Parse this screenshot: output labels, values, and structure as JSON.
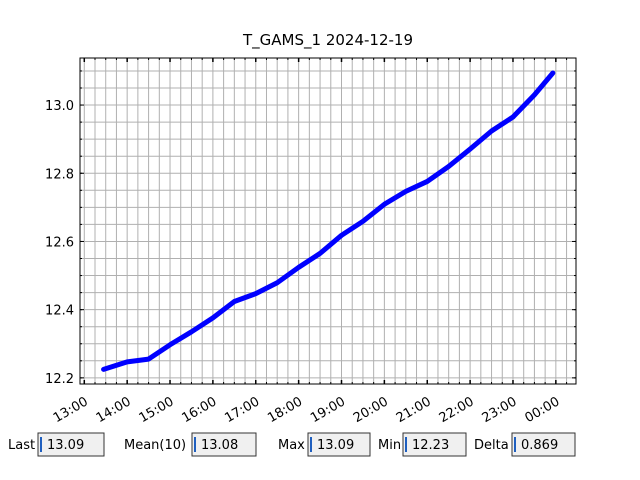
{
  "chart_data": {
    "type": "line",
    "title": "T_GAMS_1 2024-12-19",
    "x": [
      13.45,
      14.0,
      14.5,
      15.0,
      15.5,
      16.0,
      16.5,
      17.0,
      17.5,
      18.0,
      18.5,
      19.0,
      19.5,
      20.0,
      20.5,
      21.0,
      21.5,
      22.0,
      22.5,
      23.0,
      23.5,
      23.93
    ],
    "series": [
      {
        "name": "T_GAMS_1",
        "color": "#0000ff",
        "values": [
          12.225,
          12.247,
          12.255,
          12.297,
          12.335,
          12.376,
          12.424,
          12.447,
          12.479,
          12.524,
          12.565,
          12.618,
          12.659,
          12.709,
          12.747,
          12.776,
          12.82,
          12.871,
          12.924,
          12.965,
          13.03,
          13.094
        ]
      }
    ],
    "xlim": [
      12.9,
      24.47
    ],
    "ylim": [
      12.182,
      13.138
    ],
    "xticks": [
      {
        "value": 13,
        "label": "13:00"
      },
      {
        "value": 14,
        "label": "14:00"
      },
      {
        "value": 15,
        "label": "15:00"
      },
      {
        "value": 16,
        "label": "16:00"
      },
      {
        "value": 17,
        "label": "17:00"
      },
      {
        "value": 18,
        "label": "18:00"
      },
      {
        "value": 19,
        "label": "19:00"
      },
      {
        "value": 20,
        "label": "20:00"
      },
      {
        "value": 21,
        "label": "21:00"
      },
      {
        "value": 22,
        "label": "22:00"
      },
      {
        "value": 23,
        "label": "23:00"
      },
      {
        "value": 24,
        "label": "00:00"
      }
    ],
    "yticks": [
      12.2,
      12.4,
      12.6,
      12.8,
      {
        "value": 13,
        "label": "13.0"
      }
    ],
    "xminorticks": [
      13.0,
      13.25,
      13.5,
      13.75,
      14.0,
      14.25,
      14.5,
      14.75,
      15.0,
      15.25,
      15.5,
      15.75,
      16.0,
      16.25,
      16.5,
      16.75,
      17.0,
      17.25,
      17.5,
      17.75,
      18.0,
      18.25,
      18.5,
      18.75,
      19.0,
      19.25,
      19.5,
      19.75,
      20.0,
      20.25,
      20.5,
      20.75,
      21.0,
      21.25,
      21.5,
      21.75,
      22.0,
      22.25,
      22.5,
      22.75,
      23.0,
      23.25,
      23.5,
      23.75,
      24.0,
      24.25
    ],
    "yminorticks": [
      12.2,
      12.25,
      12.3,
      12.35,
      12.4,
      12.45,
      12.5,
      12.55,
      12.6,
      12.65,
      12.7,
      12.75,
      12.8,
      12.85,
      12.9,
      12.95,
      13.0,
      13.05,
      13.1
    ],
    "grid": true
  },
  "stats": [
    {
      "label": "Last",
      "value": 13.09
    },
    {
      "label": "Mean(10)",
      "value": 13.08
    },
    {
      "label": "Max",
      "value": 13.09
    },
    {
      "label": "Min",
      "value": 12.23
    },
    {
      "label": "Delta",
      "value": 0.869
    }
  ]
}
